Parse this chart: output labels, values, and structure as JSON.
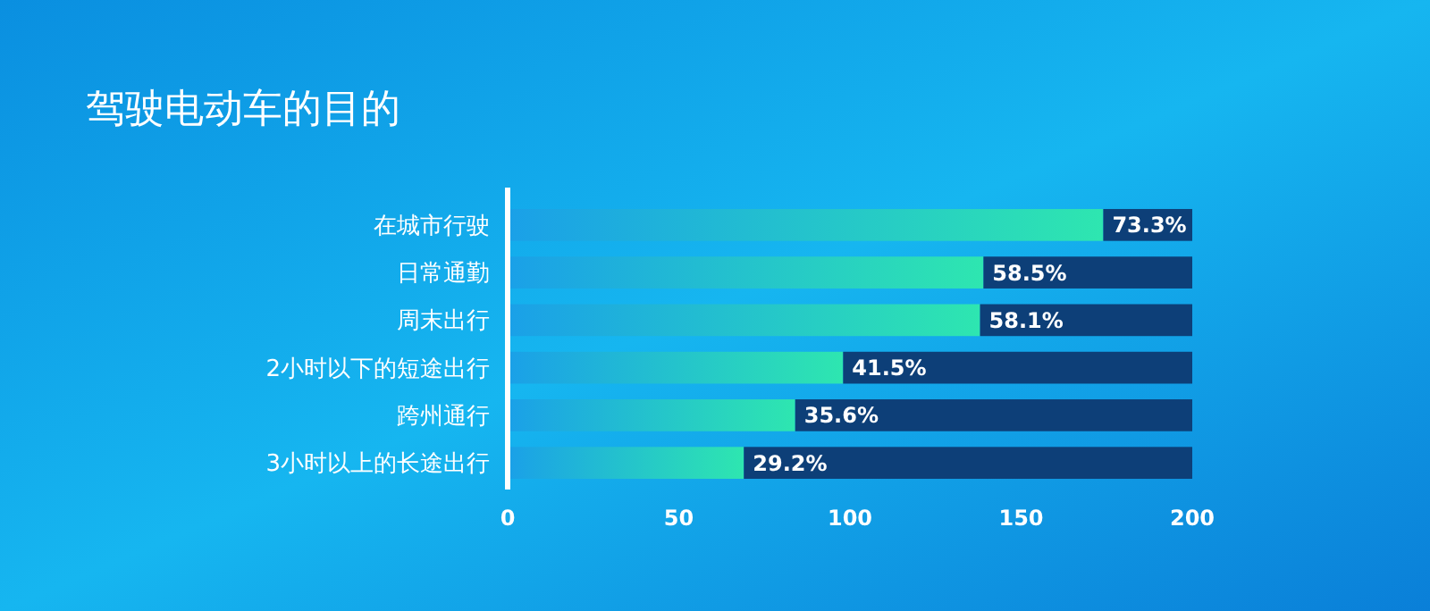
{
  "chart_data": {
    "type": "bar",
    "orientation": "horizontal",
    "stacked": true,
    "title": "驾驶电动车的目的",
    "categories": [
      "在城市行驶",
      "日常通勤",
      "周末出行",
      "2小时以下的短途出行",
      "跨州通行",
      "3小时以上的长途出行"
    ],
    "series": [
      {
        "color": "#2ee6b0",
        "values": [
          174,
          139,
          138,
          98,
          84,
          69
        ]
      },
      {
        "color": "#0d3f78",
        "values": [
          26,
          61,
          62,
          102,
          116,
          131
        ]
      }
    ],
    "annotations": [
      {
        "text": "73.3%",
        "x": 174,
        "y": "在城市行驶"
      },
      {
        "text": "58.5%",
        "x": 139,
        "y": "日常通勤"
      },
      {
        "text": "58.1%",
        "x": 138,
        "y": "周末出行"
      },
      {
        "text": "41.5%",
        "x": 98,
        "y": "2小时以下的短途出行"
      },
      {
        "text": "35.6%",
        "x": 84,
        "y": "跨州通行"
      },
      {
        "text": "29.2%",
        "x": 69,
        "y": "3小时以上的长途出行"
      }
    ],
    "xlim": [
      0,
      200
    ],
    "xticks": [
      0,
      50,
      100,
      150,
      200
    ],
    "grid": false
  }
}
